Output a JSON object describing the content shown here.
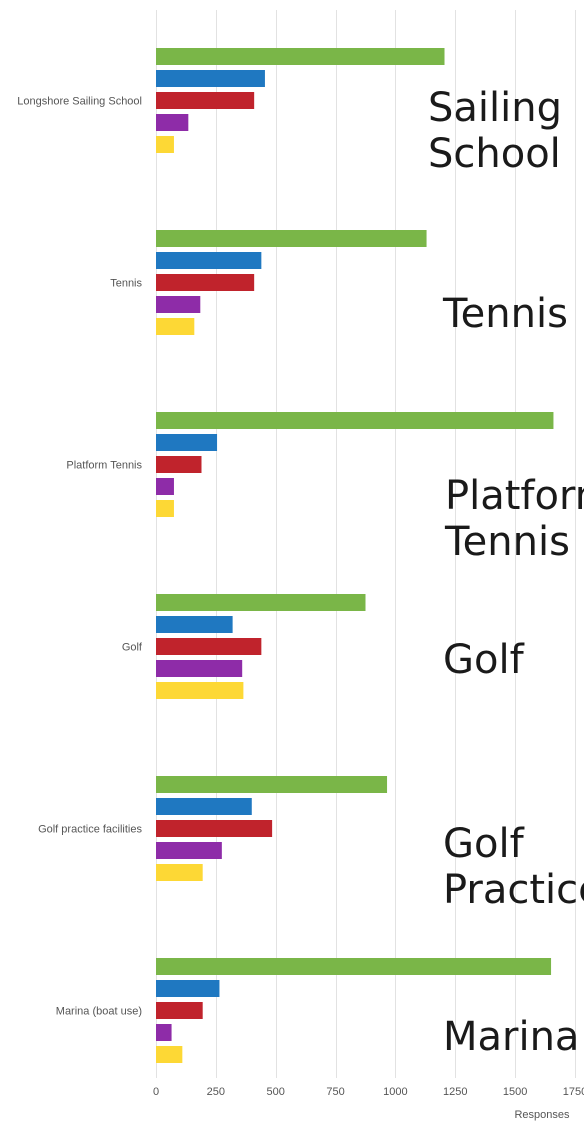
{
  "chart_data": {
    "type": "bar",
    "orientation": "horizontal",
    "categories": [
      "Longshore Sailing School",
      "Tennis",
      "Platform Tennis",
      "Golf",
      "Golf practice facilities",
      "Marina (boat use)"
    ],
    "series": [
      {
        "color": "#7ab648",
        "values": [
          1205,
          1130,
          1660,
          875,
          965,
          1650
        ]
      },
      {
        "color": "#1f78c1",
        "values": [
          455,
          440,
          255,
          320,
          400,
          265
        ]
      },
      {
        "color": "#c0232c",
        "values": [
          410,
          410,
          190,
          440,
          485,
          195
        ]
      },
      {
        "color": "#8e2ca8",
        "values": [
          135,
          185,
          75,
          360,
          275,
          65
        ]
      },
      {
        "color": "#fdd835",
        "values": [
          75,
          160,
          75,
          365,
          195,
          110
        ]
      }
    ],
    "xlabel": "Responses",
    "ylabel": "",
    "xlim": [
      0,
      1750
    ],
    "xticks": [
      0,
      250,
      500,
      750,
      1000,
      1250,
      1500,
      1750
    ],
    "grid": true,
    "legend": "none",
    "overlay_labels": [
      [
        "Sailing",
        "School"
      ],
      [
        "Tennis"
      ],
      [
        "Platform",
        "Tennis"
      ],
      [
        "Golf"
      ],
      [
        "Golf",
        "Practice"
      ],
      [
        "Marina"
      ]
    ]
  }
}
